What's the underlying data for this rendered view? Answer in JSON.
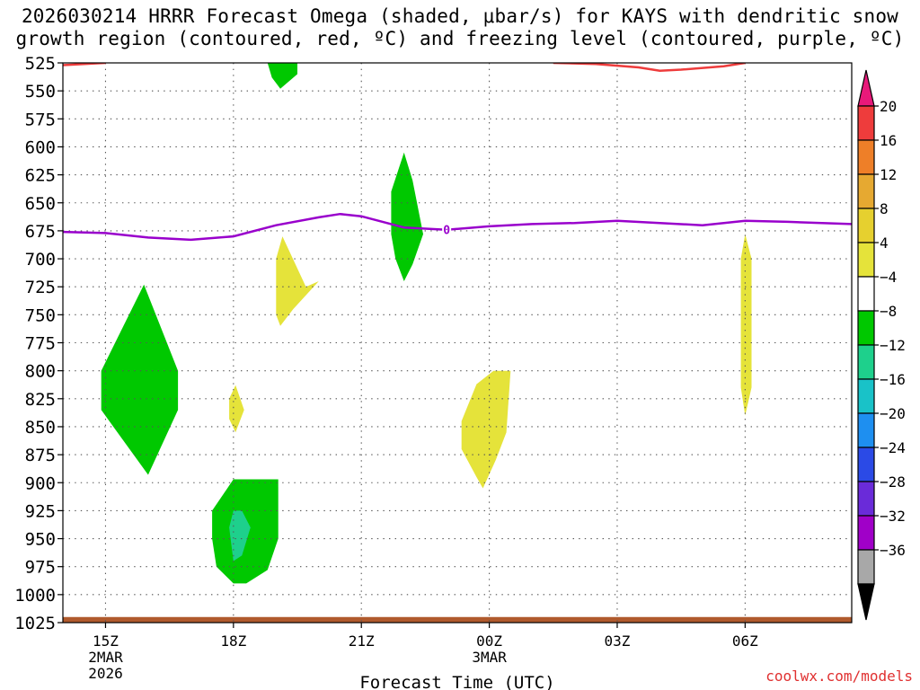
{
  "title": {
    "line1": "2026030214 HRRR Forecast Omega (shaded, μbar/s) for KAYS with dendritic snow",
    "line2": "growth region (contoured, red, ºC) and freezing level (contoured, purple, ºC)"
  },
  "credit": "coolwx.com/models",
  "chart_data": {
    "type": "contour",
    "title": "2026030214 HRRR Forecast Omega (shaded, μbar/s) for KAYS with dendritic snow growth region (contoured, red, ºC) and freezing level (contoured, purple, ºC)",
    "xlabel": "Forecast Time (UTC)",
    "ylabel": "",
    "x_unit": "hours since 2026-03-02 15Z",
    "xlim": [
      -1,
      17.5
    ],
    "ylim": [
      525,
      1025
    ],
    "x_ticks": [
      {
        "value": 0,
        "label": "15Z",
        "sub1": "2MAR",
        "sub2": "2026"
      },
      {
        "value": 3,
        "label": "18Z",
        "sub1": "",
        "sub2": ""
      },
      {
        "value": 6,
        "label": "21Z",
        "sub1": "",
        "sub2": ""
      },
      {
        "value": 9,
        "label": "00Z",
        "sub1": "3MAR",
        "sub2": ""
      },
      {
        "value": 12,
        "label": "03Z",
        "sub1": "",
        "sub2": ""
      },
      {
        "value": 15,
        "label": "06Z",
        "sub1": "",
        "sub2": ""
      }
    ],
    "y_ticks": [
      525,
      550,
      575,
      600,
      625,
      650,
      675,
      700,
      725,
      750,
      775,
      800,
      825,
      850,
      875,
      900,
      925,
      950,
      975,
      1000,
      1025
    ],
    "colorbar": {
      "labels": [
        "20",
        "16",
        "12",
        "8",
        "4",
        "−4",
        "−8",
        "−12",
        "−16",
        "−20",
        "−24",
        "−28",
        "−32",
        "−36"
      ],
      "colors": [
        "#e8197a",
        "#ee3c3c",
        "#ee7f28",
        "#e6a931",
        "#e6d02f",
        "#e5e33a",
        "#ffffff",
        "#00c800",
        "#1ed08c",
        "#19c2c8",
        "#1e8ff0",
        "#2b4ae6",
        "#6a2bd9",
        "#a000c8",
        "#a8a8a8",
        "#000000"
      ]
    },
    "omega_regions": [
      {
        "color": "#00c800",
        "label": "-8 to -4",
        "points": [
          [
            -0.1,
            800
          ],
          [
            0.9,
            723
          ],
          [
            1.7,
            800
          ],
          [
            1.7,
            835
          ],
          [
            1.0,
            893
          ],
          [
            -0.1,
            835
          ]
        ]
      },
      {
        "color": "#00c800",
        "label": "-8 to -4",
        "points": [
          [
            3.8,
            525
          ],
          [
            4.5,
            525
          ],
          [
            4.5,
            535
          ],
          [
            4.1,
            548
          ],
          [
            3.9,
            538
          ]
        ]
      },
      {
        "color": "#00c800",
        "label": "-8 to -4",
        "points": [
          [
            6.7,
            678
          ],
          [
            6.7,
            640
          ],
          [
            7.0,
            605
          ],
          [
            7.2,
            630
          ],
          [
            7.45,
            678
          ],
          [
            7.2,
            705
          ],
          [
            7.0,
            720
          ],
          [
            6.8,
            700
          ]
        ]
      },
      {
        "color": "#00c800",
        "label": "-8 to -4",
        "points": [
          [
            2.5,
            925
          ],
          [
            3.0,
            897
          ],
          [
            4.05,
            897
          ],
          [
            4.05,
            950
          ],
          [
            3.8,
            978
          ],
          [
            3.3,
            990
          ],
          [
            3.0,
            990
          ],
          [
            2.6,
            975
          ],
          [
            2.5,
            950
          ]
        ]
      },
      {
        "color": "#1ed08c",
        "label": "-12 to -8",
        "points": [
          [
            2.9,
            940
          ],
          [
            3.0,
            925
          ],
          [
            3.2,
            925
          ],
          [
            3.4,
            940
          ],
          [
            3.2,
            965
          ],
          [
            3.0,
            970
          ]
        ]
      },
      {
        "color": "#e5e33a",
        "label": "4 to 8",
        "points": [
          [
            4.0,
            700
          ],
          [
            4.15,
            680
          ],
          [
            4.7,
            725
          ],
          [
            5.0,
            720
          ],
          [
            4.4,
            745
          ],
          [
            4.1,
            760
          ],
          [
            4.0,
            750
          ]
        ]
      },
      {
        "color": "#e5e33a",
        "label": "4 to 8",
        "points": [
          [
            2.9,
            825
          ],
          [
            3.05,
            813
          ],
          [
            3.25,
            835
          ],
          [
            3.05,
            855
          ],
          [
            2.9,
            843
          ]
        ]
      },
      {
        "color": "#e5e33a",
        "label": "4 to 8",
        "points": [
          [
            8.35,
            845
          ],
          [
            8.7,
            812
          ],
          [
            9.1,
            800
          ],
          [
            9.5,
            800
          ],
          [
            9.4,
            855
          ],
          [
            9.15,
            880
          ],
          [
            8.85,
            905
          ],
          [
            8.7,
            895
          ],
          [
            8.35,
            870
          ]
        ]
      },
      {
        "color": "#e5e33a",
        "label": "4 to 8",
        "points": [
          [
            14.9,
            700
          ],
          [
            15.0,
            678
          ],
          [
            15.15,
            700
          ],
          [
            15.15,
            815
          ],
          [
            15.0,
            840
          ],
          [
            14.9,
            815
          ]
        ]
      }
    ],
    "lines": [
      {
        "name": "freezing level",
        "color": "#9900cc",
        "label": "0",
        "points": [
          [
            -1,
            676
          ],
          [
            0,
            677
          ],
          [
            1,
            681
          ],
          [
            2,
            683
          ],
          [
            3,
            680
          ],
          [
            4,
            670
          ],
          [
            5,
            663
          ],
          [
            5.5,
            660
          ],
          [
            6,
            662
          ],
          [
            6.5,
            667
          ],
          [
            7,
            672
          ],
          [
            8,
            674
          ],
          [
            9,
            671
          ],
          [
            10,
            669
          ],
          [
            11,
            668
          ],
          [
            12,
            666
          ],
          [
            13,
            668
          ],
          [
            14,
            670
          ],
          [
            15,
            666
          ],
          [
            16,
            667
          ],
          [
            17.5,
            669
          ]
        ]
      },
      {
        "name": "dendritic growth region",
        "color": "#ee3c3c",
        "label": "",
        "points": [
          [
            -1,
            527
          ],
          [
            0,
            525
          ]
        ]
      },
      {
        "name": "dendritic growth region",
        "color": "#ee3c3c",
        "label": "",
        "points": [
          [
            10.5,
            525
          ],
          [
            11.5,
            526
          ],
          [
            12.5,
            529
          ],
          [
            13,
            532
          ],
          [
            13.5,
            531
          ],
          [
            14.5,
            528
          ],
          [
            15.0,
            525
          ]
        ]
      },
      {
        "name": "surface",
        "color": "#b05a2d",
        "label": "",
        "points": [
          [
            -1,
            1020
          ],
          [
            17.5,
            1020
          ]
        ]
      }
    ]
  }
}
